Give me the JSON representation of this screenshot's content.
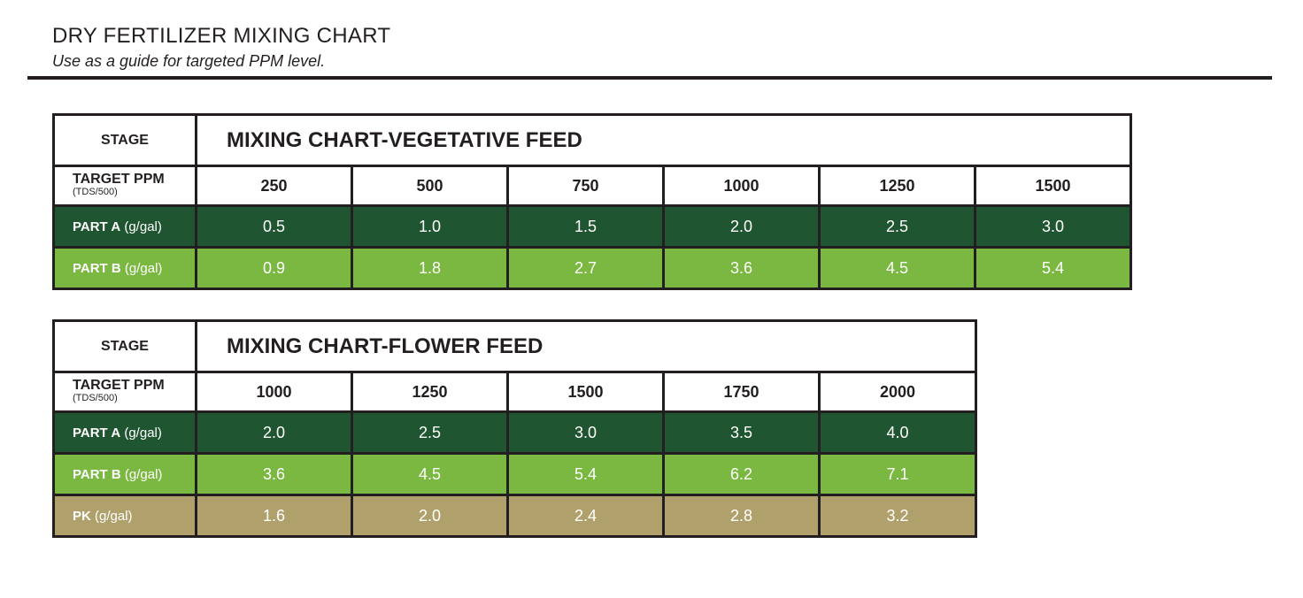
{
  "header": {
    "title": "DRY FERTILIZER MIXING CHART",
    "subtitle": "Use as a guide for targeted PPM level."
  },
  "vegetative": {
    "stage_label": "STAGE",
    "title": "MIXING CHART-VEGETATIVE FEED",
    "ppm_label": "TARGET PPM",
    "ppm_sub": "(TDS/500)",
    "ppm": [
      "250",
      "500",
      "750",
      "1000",
      "1250",
      "1500"
    ],
    "rows": [
      {
        "label": "PART A",
        "unit": "(g/gal)",
        "values": [
          "0.5",
          "1.0",
          "1.5",
          "2.0",
          "2.5",
          "3.0"
        ],
        "color": "#1f5631"
      },
      {
        "label": "PART B",
        "unit": "(g/gal)",
        "values": [
          "0.9",
          "1.8",
          "2.7",
          "3.6",
          "4.5",
          "5.4"
        ],
        "color": "#7ab841"
      }
    ]
  },
  "flower": {
    "stage_label": "STAGE",
    "title": "MIXING CHART-FLOWER FEED",
    "ppm_label": "TARGET PPM",
    "ppm_sub": "(TDS/500)",
    "ppm": [
      "1000",
      "1250",
      "1500",
      "1750",
      "2000"
    ],
    "rows": [
      {
        "label": "PART A",
        "unit": "(g/gal)",
        "values": [
          "2.0",
          "2.5",
          "3.0",
          "3.5",
          "4.0"
        ],
        "color": "#1f5631"
      },
      {
        "label": "PART B",
        "unit": "(g/gal)",
        "values": [
          "3.6",
          "4.5",
          "5.4",
          "6.2",
          "7.1"
        ],
        "color": "#7ab841"
      },
      {
        "label": "PK",
        "unit": "(g/gal)",
        "values": [
          "1.6",
          "2.0",
          "2.4",
          "2.8",
          "3.2"
        ],
        "color": "#b0a06c"
      }
    ]
  }
}
